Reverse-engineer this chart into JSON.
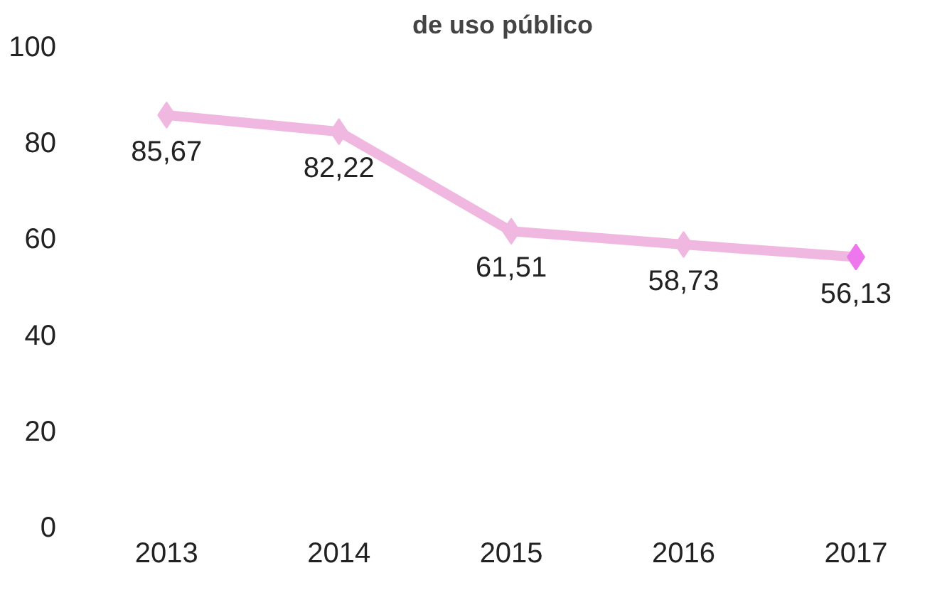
{
  "chart_data": {
    "type": "line",
    "title": "de uso público",
    "categories": [
      "2013",
      "2014",
      "2015",
      "2016",
      "2017"
    ],
    "series": [
      {
        "color": "#f0b8e0",
        "colors": [
          "#f0b8e0",
          "#f0b8e0",
          "#f0b8e0",
          "#f0b8e0",
          "#ee77ee"
        ],
        "values": [
          85.67,
          82.22,
          61.51,
          58.73,
          56.13
        ]
      }
    ],
    "value_labels": [
      "85,67",
      "82,22",
      "61,51",
      "58,73",
      "56,13"
    ],
    "ylim": [
      0,
      100
    ],
    "yticks": [
      0,
      20,
      40,
      60,
      80,
      100
    ],
    "grid": false,
    "marker": "diamond",
    "line_style": "solid"
  }
}
